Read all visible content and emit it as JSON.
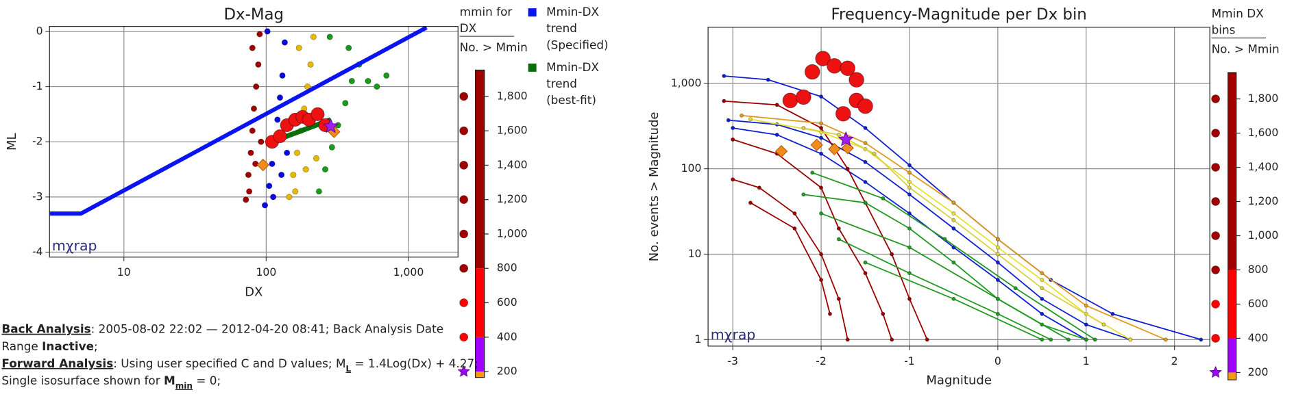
{
  "chart_data": [
    {
      "type": "scatter",
      "title": "Dx-Mag",
      "x_label": "DX",
      "y_label": "ML",
      "x_log": true,
      "xlim": [
        3,
        2230
      ],
      "ylim": [
        -4.09,
        0.09
      ],
      "xticks": [
        10,
        100,
        {
          "value": 1000,
          "label": "1,000"
        }
      ],
      "yticks": [
        0,
        -1,
        -2,
        -3,
        -4
      ],
      "grid": true,
      "watermark": "mχrap",
      "legend": "right",
      "series": [
        {
          "color": "#a00000",
          "marker": "circle",
          "size": 3.5,
          "x": [
            72,
            75,
            78,
            80,
            82,
            85,
            88,
            90,
            76,
            84,
            92,
            80
          ],
          "y": [
            -3.05,
            -2.6,
            -2.2,
            -1.8,
            -1.4,
            -1.0,
            -0.6,
            -0.05,
            -2.9,
            -2.4,
            -2.0,
            -0.3
          ]
        },
        {
          "color": "#0a0ae0",
          "marker": "circle",
          "size": 3.5,
          "x": [
            98,
            105,
            110,
            115,
            120,
            125,
            130,
            135,
            112,
            128,
            140,
            102
          ],
          "y": [
            -3.15,
            -2.8,
            -2.4,
            -2.0,
            -1.6,
            -1.2,
            -0.8,
            -0.2,
            -3.0,
            -2.6,
            -2.2,
            0
          ]
        },
        {
          "color": "#e6b800",
          "marker": "circle",
          "size": 3.5,
          "x": [
            145,
            155,
            165,
            175,
            185,
            195,
            205,
            215,
            160,
            190,
            225,
            170
          ],
          "y": [
            -3.0,
            -2.6,
            -2.2,
            -1.8,
            -1.4,
            -1.0,
            -0.6,
            -0.1,
            -2.9,
            -2.5,
            -2.3,
            -0.3
          ]
        },
        {
          "color": "#1a9a1a",
          "marker": "circle",
          "size": 3.5,
          "x": [
            235,
            260,
            290,
            320,
            360,
            400,
            450,
            520,
            600,
            700,
            280,
            380
          ],
          "y": [
            -2.9,
            -2.5,
            -2.1,
            -1.7,
            -1.3,
            -0.9,
            -0.6,
            -0.9,
            -1.0,
            -0.8,
            -0.1,
            -0.3
          ]
        },
        {
          "name": "Mmin-DX trend (Specified)",
          "color": "#0a14f0",
          "line_width": 5,
          "x": [
            3,
            5,
            1340
          ],
          "y": [
            -3.3,
            -3.3,
            0.07
          ]
        },
        {
          "name": "Mmin-DX trend (best-fit)",
          "color": "#0a6e0a",
          "line_width": 6,
          "x": [
            100,
            284
          ],
          "y": [
            -2.04,
            -1.6
          ]
        },
        {
          "color": "#ee1111",
          "marker": "circle",
          "size": 8,
          "x": [
            110,
            125,
            140,
            160,
            180,
            200,
            230,
            260
          ],
          "y": [
            -2.0,
            -1.9,
            -1.7,
            -1.6,
            -1.55,
            -1.6,
            -1.5,
            -1.7
          ]
        },
        {
          "color": "#f08c1e",
          "marker": "diamond",
          "size": 7,
          "x": [
            95,
            300
          ],
          "y": [
            -2.42,
            -1.82
          ]
        },
        {
          "color": "#a020f0",
          "marker": "star",
          "size": 9,
          "x": [
            284
          ],
          "y": [
            -1.72
          ]
        }
      ],
      "colorbar": {
        "title": "mmin for DX",
        "subtitle": "No. > Mmin",
        "lim": [
          166,
          1953
        ],
        "ticks": [
          200,
          400,
          600,
          800,
          {
            "value": 1000,
            "label": "1,000"
          },
          {
            "value": 1200,
            "label": "1,200"
          },
          {
            "value": 1400,
            "label": "1,400"
          },
          {
            "value": 1600,
            "label": "1,600"
          },
          {
            "value": 1800,
            "label": "1,800"
          }
        ],
        "segments": [
          {
            "from": 166,
            "to": 200,
            "color": "#f39c12"
          },
          {
            "from": 200,
            "to": 400,
            "color": "#a000ff"
          },
          {
            "from": 400,
            "to": 800,
            "color": "#ff0000"
          },
          {
            "from": 800,
            "to": 1953,
            "color": "#a00000"
          }
        ],
        "markers": [
          {
            "shape": "star",
            "color": "#a000ff"
          },
          {
            "shape": "circle",
            "color": "#ff0000"
          },
          {
            "shape": "circle",
            "color": "#ff0000"
          },
          {
            "shape": "circle",
            "color": "#a00000"
          },
          {
            "shape": "circle",
            "color": "#a00000"
          },
          {
            "shape": "circle",
            "color": "#a00000"
          },
          {
            "shape": "circle",
            "color": "#a00000"
          },
          {
            "shape": "circle",
            "color": "#a00000"
          },
          {
            "shape": "circle",
            "color": "#a00000"
          }
        ]
      }
    },
    {
      "type": "line",
      "title": "Frequency-Magnitude per Dx bin",
      "x_label": "Magnitude",
      "y_label": "No. events > Magnitude",
      "y_log": true,
      "xlim": [
        -3.28,
        2.4
      ],
      "ylim": [
        0.84,
        4530
      ],
      "xticks": [
        -3,
        -2,
        -1,
        0,
        1,
        2
      ],
      "yticks": [
        1,
        10,
        100,
        {
          "value": 1000,
          "label": "1,000"
        }
      ],
      "grid": true,
      "watermark": "mχrap",
      "series": [
        {
          "color": "#1020d0",
          "line_width": 1.5,
          "marker": "circle",
          "size": 2.2,
          "x": [
            -3.05,
            -2.5,
            -2,
            -1.5,
            -1,
            -0.5,
            0,
            0.5,
            1,
            1.5
          ],
          "y": [
            370,
            330,
            230,
            120,
            50,
            20,
            8,
            3,
            1.5,
            1
          ]
        },
        {
          "color": "#1020d0",
          "line_width": 1.5,
          "marker": "circle",
          "size": 2.2,
          "x": [
            -3,
            -2.5,
            -2,
            -1.5,
            -1,
            -0.5,
            0,
            0.5,
            1
          ],
          "y": [
            300,
            250,
            150,
            70,
            30,
            12,
            5,
            2,
            1
          ]
        },
        {
          "color": "#1020d0",
          "line_width": 1.5,
          "marker": "circle",
          "size": 2.2,
          "x": [
            -3.1,
            -2.6,
            -2,
            -1.5,
            -1,
            -0.5,
            0,
            0.6,
            1.3,
            2.3
          ],
          "y": [
            1220,
            1100,
            700,
            300,
            110,
            40,
            15,
            5,
            2,
            1
          ]
        },
        {
          "color": "#9a0000",
          "line_width": 1.5,
          "marker": "circle",
          "size": 2.2,
          "x": [
            -3.1,
            -2.5,
            -2,
            -1.7,
            -1.5,
            -1.2,
            -1,
            -0.8
          ],
          "y": [
            620,
            560,
            300,
            100,
            40,
            10,
            3,
            1
          ]
        },
        {
          "color": "#9a0000",
          "line_width": 1.5,
          "marker": "circle",
          "size": 2.2,
          "x": [
            -3,
            -2.5,
            -2,
            -1.8,
            -1.5,
            -1.3,
            -1.2
          ],
          "y": [
            220,
            150,
            60,
            20,
            6,
            2,
            1
          ]
        },
        {
          "color": "#9a0000",
          "line_width": 1.5,
          "marker": "circle",
          "size": 2.2,
          "x": [
            -3,
            -2.7,
            -2.3,
            -2,
            -1.8,
            -1.7
          ],
          "y": [
            75,
            60,
            30,
            10,
            3,
            1
          ]
        },
        {
          "color": "#9a0000",
          "line_width": 1.5,
          "marker": "circle",
          "size": 2.2,
          "x": [
            -2.8,
            -2.3,
            -2,
            -1.9
          ],
          "y": [
            40,
            20,
            5,
            2
          ]
        },
        {
          "color": "#e8e030",
          "line_width": 1.5,
          "marker": "circle",
          "size": 2.2,
          "x": [
            -2.8,
            -2,
            -1.5,
            -1,
            -0.5,
            0,
            0.5,
            1,
            1.5
          ],
          "y": [
            380,
            270,
            170,
            70,
            30,
            12,
            5,
            2,
            1
          ]
        },
        {
          "color": "#e09a20",
          "line_width": 1.5,
          "marker": "circle",
          "size": 2.2,
          "x": [
            -2.9,
            -2,
            -1.5,
            -1,
            -0.5,
            0,
            0.5,
            1,
            1.9
          ],
          "y": [
            420,
            340,
            200,
            90,
            40,
            15,
            6,
            2.5,
            1
          ]
        },
        {
          "color": "#d8d040",
          "line_width": 1.5,
          "marker": "circle",
          "size": 2.2,
          "x": [
            -2.2,
            -1.8,
            -1.4,
            -1,
            -0.5,
            0,
            0.5,
            1.2
          ],
          "y": [
            300,
            250,
            150,
            60,
            25,
            10,
            4,
            1.5
          ]
        },
        {
          "color": "#229a22",
          "line_width": 1.5,
          "marker": "circle",
          "size": 2.2,
          "x": [
            -2.2,
            -1.5,
            -1,
            -0.5,
            0,
            0.5,
            1
          ],
          "y": [
            50,
            40,
            20,
            8,
            3,
            1.5,
            1
          ]
        },
        {
          "color": "#229a22",
          "line_width": 1.5,
          "marker": "circle",
          "size": 2.2,
          "x": [
            -2,
            -1,
            0,
            0.8
          ],
          "y": [
            30,
            12,
            3,
            1
          ]
        },
        {
          "color": "#229a22",
          "line_width": 1.5,
          "marker": "circle",
          "size": 2.2,
          "x": [
            -1.8,
            -1,
            0,
            0.6
          ],
          "y": [
            15,
            6,
            2,
            1
          ]
        },
        {
          "color": "#229a22",
          "line_width": 1.5,
          "marker": "circle",
          "size": 2.2,
          "x": [
            -1.5,
            -0.5,
            0.5
          ],
          "y": [
            8,
            3,
            1
          ]
        },
        {
          "color": "#229a22",
          "line_width": 1.5,
          "marker": "circle",
          "size": 2.2,
          "x": [
            -2.1,
            -1.3,
            -0.6,
            0.2,
            1.1
          ],
          "y": [
            90,
            45,
            15,
            4,
            1
          ]
        },
        {
          "color": "#ee1111",
          "marker": "circle",
          "size": 9,
          "x": [
            -2.1,
            -1.98,
            -1.85,
            -1.7,
            -1.6,
            -2.35,
            -2.2,
            -1.75,
            -1.6,
            -1.5
          ],
          "y": [
            1360,
            1950,
            1600,
            1500,
            1100,
            630,
            690,
            440,
            630,
            540
          ]
        },
        {
          "color": "#f08c1e",
          "marker": "diamond",
          "size": 7,
          "x": [
            -2.45,
            -2.05,
            -1.85,
            -1.7
          ],
          "y": [
            160,
            190,
            170,
            175
          ]
        },
        {
          "color": "#a020f0",
          "marker": "star",
          "size": 9,
          "x": [
            -1.72
          ],
          "y": [
            220
          ]
        }
      ],
      "colorbar": {
        "title": "Mmin DX bins",
        "subtitle": "No. > Mmin",
        "lim": [
          157,
          1954
        ],
        "ticks": [
          200,
          400,
          600,
          800,
          {
            "value": 1000,
            "label": "1,000"
          },
          {
            "value": 1200,
            "label": "1,200"
          },
          {
            "value": 1400,
            "label": "1,400"
          },
          {
            "value": 1600,
            "label": "1,600"
          },
          {
            "value": 1800,
            "label": "1,800"
          }
        ],
        "segments": [
          {
            "from": 157,
            "to": 200,
            "color": "#f39c12"
          },
          {
            "from": 200,
            "to": 400,
            "color": "#a000ff"
          },
          {
            "from": 400,
            "to": 800,
            "color": "#ff0000"
          },
          {
            "from": 800,
            "to": 1954,
            "color": "#a00000"
          }
        ],
        "markers": [
          {
            "shape": "star",
            "color": "#a000ff"
          },
          {
            "shape": "circle",
            "color": "#ff0000"
          },
          {
            "shape": "circle",
            "color": "#ff0000"
          },
          {
            "shape": "circle",
            "color": "#a00000"
          },
          {
            "shape": "circle",
            "color": "#a00000"
          },
          {
            "shape": "circle",
            "color": "#a00000"
          },
          {
            "shape": "circle",
            "color": "#a00000"
          },
          {
            "shape": "circle",
            "color": "#a00000"
          },
          {
            "shape": "circle",
            "color": "#a00000"
          }
        ]
      }
    }
  ],
  "notes": {
    "lines": [
      [
        {
          "text": "Back Analysis",
          "style": "bu"
        },
        {
          "text": ": 2005-08-02 22:02 — 2012-04-20 08:41; Back Analysis Date"
        }
      ],
      [
        {
          "text": "Range "
        },
        {
          "text": "Inactive",
          "style": "b"
        },
        {
          "text": ";"
        }
      ],
      [
        {
          "text": "Forward Analysis",
          "style": "bu"
        },
        {
          "text": ": Using user specified C and D values; M"
        },
        {
          "text": "L",
          "style": "sub"
        },
        {
          "text": " = 1.4Log(Dx) + 4.27;"
        }
      ],
      [
        {
          "text": "Single isosurface shown for "
        },
        {
          "text": "M",
          "style": "b"
        },
        {
          "text": "min",
          "style": "bsub"
        },
        {
          "text": " = 0;"
        }
      ]
    ]
  }
}
